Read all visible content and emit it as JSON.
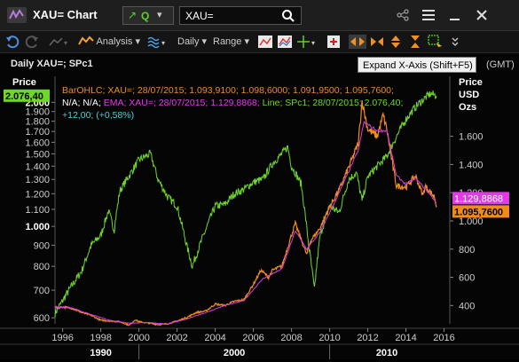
{
  "window": {
    "title": "XAU= Chart",
    "quote_label": "Q",
    "search_value": "XAU=",
    "titlebar_icons": [
      "link-icon",
      "menu-icon",
      "minimize-icon",
      "close-icon"
    ]
  },
  "toolbar": {
    "analysis_label": "Analysis",
    "interval_label": "Daily",
    "range_label": "Range"
  },
  "tooltip": "Expand X-Axis (Shift+F5)",
  "chart_header": {
    "title": "Daily XAU=; SPc1",
    "gmt": "(GMT)"
  },
  "legend": {
    "line1": "BarOHLC; XAU=; 28/07/2015; 1.093,9100; 1.098,6000; 1.091,9500; 1.095,7600;",
    "line2_prefix": "N/A; N/A;",
    "line2_ema": "EMA; XAU=; 28/07/2015; 1.129,8868;",
    "line2_spc": "Line; SPc1; 28/07/2015; 2.076,40;",
    "line3": "+12,00; (+0,58%)"
  },
  "colors": {
    "xau": "#f08c1e",
    "ema": "#e23be6",
    "spc1": "#6fd62a",
    "background": "#050505"
  },
  "chart_data": {
    "type": "line",
    "x_axis": {
      "ticks": [
        "1996",
        "1998",
        "2000",
        "2002",
        "2004",
        "2006",
        "2008",
        "2010",
        "2012",
        "2014",
        "2016"
      ],
      "decades": [
        "1990",
        "2000",
        "2010"
      ],
      "range": [
        1995.6,
        2016.3
      ]
    },
    "left_axis": {
      "label": "Price",
      "ticks": [
        "600",
        "700",
        "800",
        "900",
        "1.000",
        "1.100",
        "1.200",
        "1.300",
        "1.400",
        "1.500",
        "1.600",
        "1.700",
        "1.800",
        "1.900",
        "2.000"
      ],
      "scale": "log",
      "range": [
        580,
        2180
      ],
      "last_value_label": "2.076,40"
    },
    "right_axis": {
      "label": "Price",
      "unit": "USD",
      "unit2": "Ozs",
      "ticks": [
        "400",
        "600",
        "800",
        "1.000",
        "1.200",
        "1.400",
        "1.600"
      ],
      "range": [
        270,
        1950
      ],
      "value_labels": [
        "1.129,8868",
        "1.095,7600"
      ]
    },
    "series": [
      {
        "name": "SPc1",
        "axis": "left",
        "points": [
          [
            1995.6,
            615
          ],
          [
            1996.0,
            660
          ],
          [
            1996.5,
            720
          ],
          [
            1997.0,
            780
          ],
          [
            1997.5,
            900
          ],
          [
            1998.0,
            950
          ],
          [
            1998.4,
            1090
          ],
          [
            1998.7,
            980
          ],
          [
            1999.0,
            1220
          ],
          [
            1999.5,
            1330
          ],
          [
            2000.0,
            1450
          ],
          [
            2000.6,
            1500
          ],
          [
            2001.0,
            1300
          ],
          [
            2001.5,
            1180
          ],
          [
            2002.0,
            1120
          ],
          [
            2002.5,
            900
          ],
          [
            2002.8,
            800
          ],
          [
            2003.0,
            850
          ],
          [
            2003.5,
            980
          ],
          [
            2004.0,
            1120
          ],
          [
            2004.5,
            1130
          ],
          [
            2005.0,
            1200
          ],
          [
            2005.5,
            1230
          ],
          [
            2006.0,
            1280
          ],
          [
            2006.5,
            1300
          ],
          [
            2007.0,
            1420
          ],
          [
            2007.5,
            1500
          ],
          [
            2007.8,
            1560
          ],
          [
            2008.0,
            1400
          ],
          [
            2008.5,
            1270
          ],
          [
            2008.9,
            900
          ],
          [
            2009.2,
            700
          ],
          [
            2009.5,
            950
          ],
          [
            2010.0,
            1120
          ],
          [
            2010.5,
            1080
          ],
          [
            2011.0,
            1300
          ],
          [
            2011.4,
            1350
          ],
          [
            2011.7,
            1150
          ],
          [
            2012.0,
            1320
          ],
          [
            2012.5,
            1400
          ],
          [
            2013.0,
            1480
          ],
          [
            2013.5,
            1650
          ],
          [
            2014.0,
            1820
          ],
          [
            2014.5,
            1950
          ],
          [
            2015.0,
            2050
          ],
          [
            2015.3,
            2100
          ],
          [
            2015.6,
            2076
          ]
        ]
      },
      {
        "name": "XAU=",
        "axis": "right",
        "points": [
          [
            1995.6,
            385
          ],
          [
            1996.0,
            390
          ],
          [
            1996.5,
            380
          ],
          [
            1997.0,
            350
          ],
          [
            1997.5,
            330
          ],
          [
            1998.0,
            295
          ],
          [
            1998.5,
            290
          ],
          [
            1999.0,
            285
          ],
          [
            1999.5,
            260
          ],
          [
            1999.8,
            300
          ],
          [
            2000.0,
            285
          ],
          [
            2000.5,
            275
          ],
          [
            2001.0,
            265
          ],
          [
            2001.5,
            270
          ],
          [
            2002.0,
            290
          ],
          [
            2002.5,
            315
          ],
          [
            2003.0,
            350
          ],
          [
            2003.5,
            360
          ],
          [
            2004.0,
            410
          ],
          [
            2004.5,
            400
          ],
          [
            2005.0,
            430
          ],
          [
            2005.5,
            440
          ],
          [
            2006.0,
            550
          ],
          [
            2006.4,
            650
          ],
          [
            2006.8,
            600
          ],
          [
            2007.0,
            650
          ],
          [
            2007.5,
            680
          ],
          [
            2008.0,
            900
          ],
          [
            2008.2,
            980
          ],
          [
            2008.8,
            760
          ],
          [
            2009.0,
            860
          ],
          [
            2009.5,
            950
          ],
          [
            2010.0,
            1100
          ],
          [
            2010.5,
            1220
          ],
          [
            2011.0,
            1380
          ],
          [
            2011.5,
            1550
          ],
          [
            2011.7,
            1850
          ],
          [
            2012.0,
            1650
          ],
          [
            2012.5,
            1600
          ],
          [
            2012.8,
            1750
          ],
          [
            2013.0,
            1650
          ],
          [
            2013.3,
            1400
          ],
          [
            2013.5,
            1250
          ],
          [
            2014.0,
            1240
          ],
          [
            2014.5,
            1320
          ],
          [
            2014.9,
            1180
          ],
          [
            2015.0,
            1250
          ],
          [
            2015.5,
            1170
          ],
          [
            2015.6,
            1096
          ]
        ]
      },
      {
        "name": "EMA",
        "axis": "right",
        "points": [
          [
            1995.6,
            388
          ],
          [
            1996.5,
            382
          ],
          [
            1997.5,
            335
          ],
          [
            1998.5,
            294
          ],
          [
            1999.5,
            275
          ],
          [
            2000.5,
            280
          ],
          [
            2001.5,
            268
          ],
          [
            2002.5,
            305
          ],
          [
            2003.5,
            350
          ],
          [
            2004.5,
            400
          ],
          [
            2005.5,
            435
          ],
          [
            2006.5,
            590
          ],
          [
            2007.5,
            660
          ],
          [
            2008.2,
            930
          ],
          [
            2008.8,
            800
          ],
          [
            2009.5,
            920
          ],
          [
            2010.5,
            1200
          ],
          [
            2011.5,
            1500
          ],
          [
            2011.8,
            1700
          ],
          [
            2012.5,
            1640
          ],
          [
            2013.0,
            1640
          ],
          [
            2013.5,
            1320
          ],
          [
            2014.0,
            1260
          ],
          [
            2014.5,
            1300
          ],
          [
            2015.0,
            1230
          ],
          [
            2015.6,
            1130
          ]
        ]
      }
    ],
    "grid": false,
    "legend_position": "top-left"
  }
}
